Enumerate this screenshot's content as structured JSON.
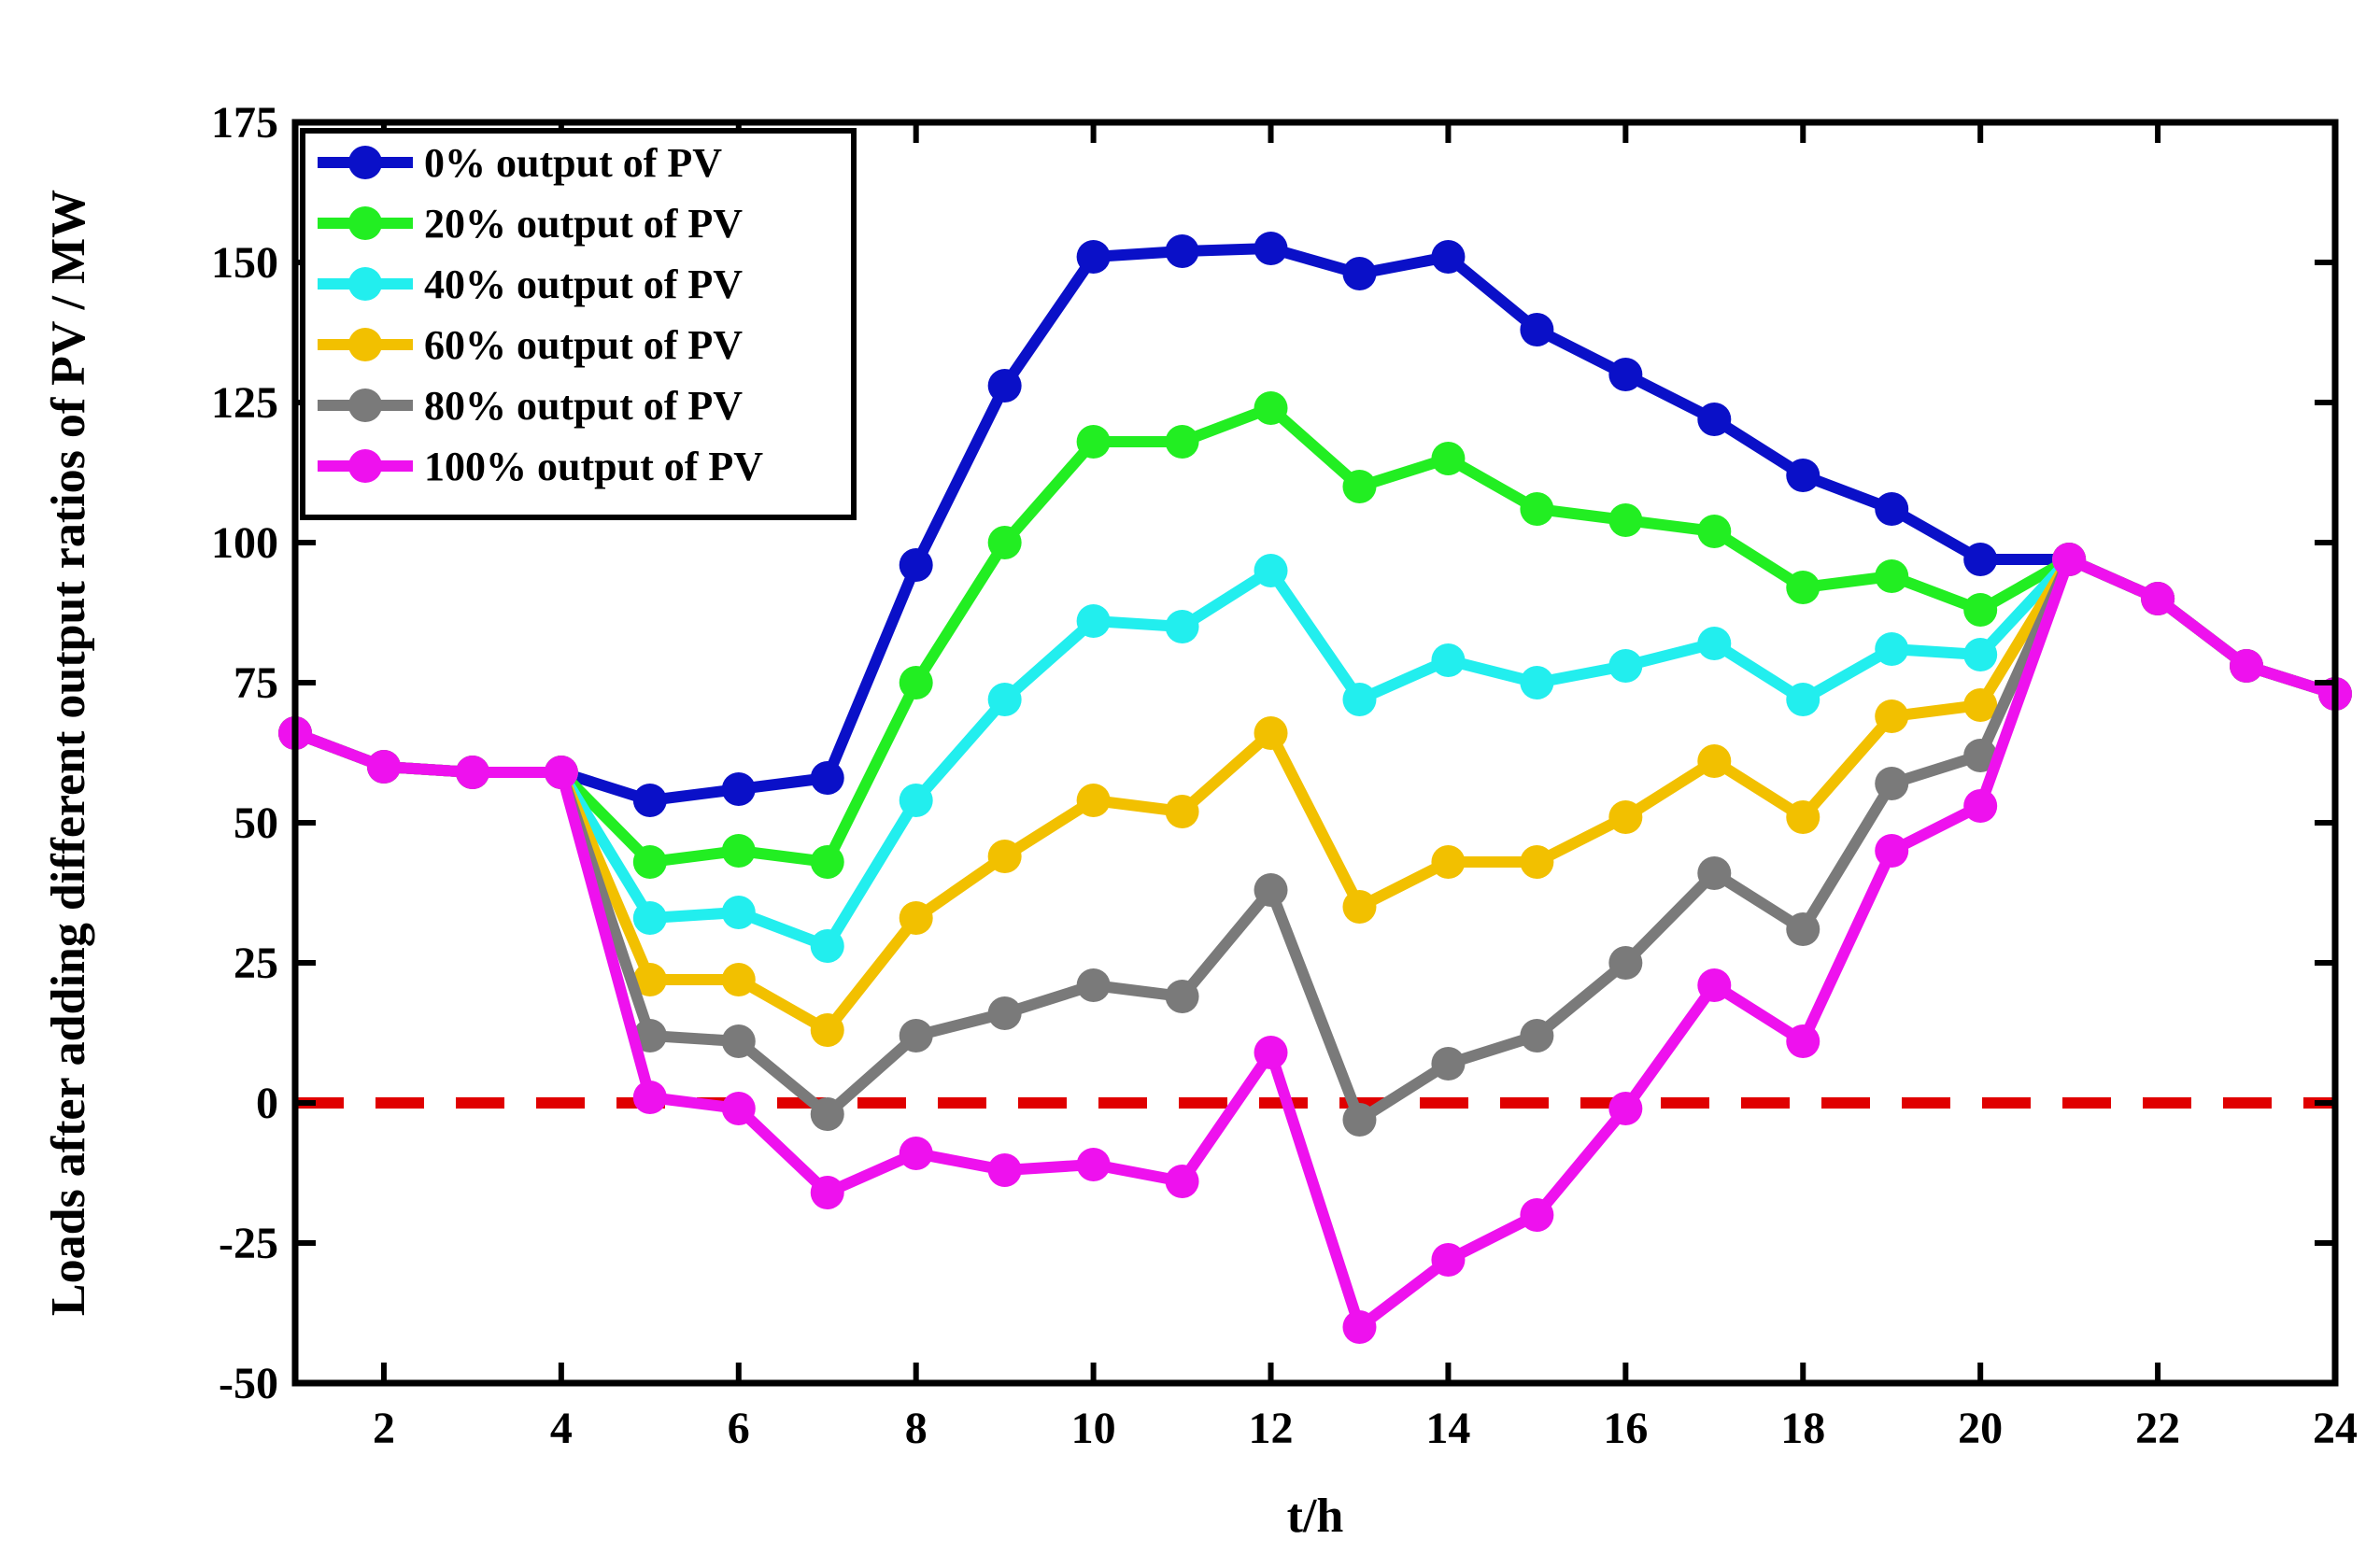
{
  "chart_data": {
    "type": "line",
    "title": "",
    "xlabel": "t/h",
    "ylabel": "Loads after adding different output ratios of PV / MW",
    "xlim": [
      1,
      24
    ],
    "ylim": [
      -50,
      175
    ],
    "xticks": [
      2,
      4,
      6,
      8,
      10,
      12,
      14,
      16,
      18,
      20,
      22,
      24
    ],
    "yticks": [
      -50,
      -25,
      0,
      25,
      50,
      75,
      100,
      125,
      150,
      175
    ],
    "grid": false,
    "legend_location": "top-left",
    "reference_line": {
      "y": 0,
      "color": "#e00000",
      "style": "dashed"
    },
    "x": [
      1,
      2,
      3,
      4,
      5,
      6,
      7,
      8,
      9,
      10,
      11,
      12,
      13,
      14,
      15,
      16,
      17,
      18,
      19,
      20,
      21,
      22,
      23,
      24
    ],
    "series": [
      {
        "name": "0% output of PV",
        "color": "#0a10c8",
        "values": [
          66,
          60,
          59,
          59,
          54,
          56,
          58,
          96,
          128,
          151,
          152,
          152.5,
          148,
          151,
          138,
          130,
          122,
          112,
          106,
          97,
          97,
          90,
          78,
          73
        ]
      },
      {
        "name": "20% output of PV",
        "color": "#22ee22",
        "values": [
          66,
          60,
          59,
          59,
          43,
          45,
          43,
          75,
          100,
          118,
          118,
          124,
          110,
          115,
          106,
          104,
          102,
          92,
          94,
          88,
          97,
          90,
          78,
          73
        ]
      },
      {
        "name": "40% output of PV",
        "color": "#22eeee",
        "values": [
          66,
          60,
          59,
          59,
          33,
          34,
          28,
          54,
          72,
          86,
          85,
          95,
          72,
          79,
          75,
          78,
          82,
          72,
          81,
          80,
          97,
          90,
          78,
          73
        ]
      },
      {
        "name": "60% output of PV",
        "color": "#f2c000",
        "values": [
          66,
          60,
          59,
          59,
          22,
          22,
          13,
          33,
          44,
          54,
          52,
          66,
          35,
          43,
          43,
          51,
          61,
          51,
          69,
          71,
          97,
          90,
          78,
          73
        ]
      },
      {
        "name": "80% output of PV",
        "color": "#7a7a7a",
        "values": [
          66,
          60,
          59,
          59,
          12,
          11,
          -2,
          12,
          16,
          21,
          19,
          38,
          -3,
          7,
          12,
          25,
          41,
          31,
          57,
          62,
          97,
          90,
          78,
          73
        ]
      },
      {
        "name": "100% output of PV",
        "color": "#ee11ee",
        "values": [
          66,
          60,
          59,
          59,
          1,
          -1,
          -16,
          -9,
          -12,
          -11,
          -14,
          9,
          -40,
          -28,
          -20,
          -1,
          21,
          11,
          45,
          53,
          97,
          90,
          78,
          73
        ]
      }
    ]
  }
}
